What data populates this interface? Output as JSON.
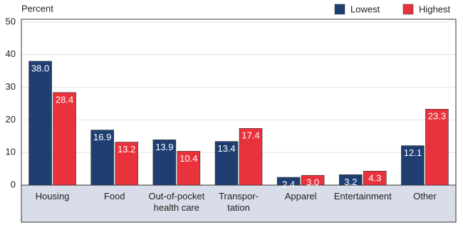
{
  "chart_data": {
    "type": "bar",
    "y_label": "Percent",
    "categories": [
      "Housing",
      "Food",
      "Out-of-pocket\nhealth care",
      "Transpor-\ntation",
      "Apparel",
      "Entertainment",
      "Other"
    ],
    "series": [
      {
        "name": "Lowest",
        "color": "#1f3f73",
        "values": [
          38.0,
          16.9,
          13.9,
          13.4,
          2.4,
          3.2,
          12.1
        ],
        "value_labels": [
          "38.0",
          "16.9",
          "13.9",
          "13.4",
          "2.4",
          "3.2",
          "12.1"
        ]
      },
      {
        "name": "Highest",
        "color": "#e8323c",
        "values": [
          28.4,
          13.2,
          10.4,
          17.4,
          3.0,
          4.3,
          23.3
        ],
        "value_labels": [
          "28.4",
          "13.2",
          "10.4",
          "17.4",
          "3.0",
          "4.3",
          "23.3"
        ]
      }
    ],
    "ylim": [
      0,
      50
    ],
    "yticks": [
      0,
      10,
      20,
      30,
      40,
      50
    ],
    "grid": true,
    "legend": "top-right"
  }
}
